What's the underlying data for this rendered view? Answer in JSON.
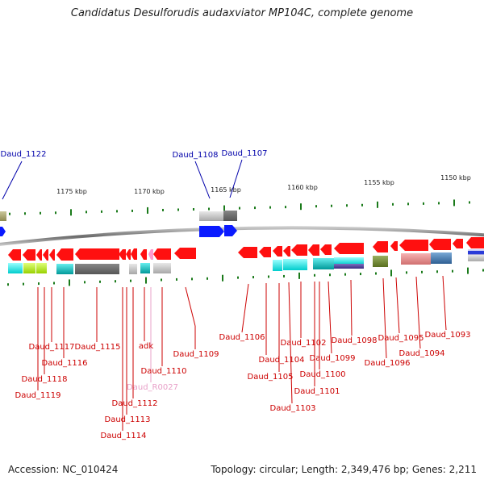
{
  "title": "Candidatus Desulforudis audaxviator MP104C, complete genome",
  "footer": {
    "accession": "Accession: NC_010424",
    "summary": "Topology: circular; Length: 2,349,476 bp; Genes: 2,211"
  },
  "colors": {
    "forward_label": "#0000aa",
    "reverse_label": "#cc0000",
    "rna_label": "#e8a0c8",
    "backbone": "#777777",
    "tick": "#1a7a1a",
    "forward_gene": "#0a1aff",
    "reverse_gene": "#ff1010"
  },
  "scale_labels": [
    "1175 kbp",
    "1170 kbp",
    "1165 kbp",
    "1160 kbp",
    "1155 kbp",
    "1150 kbp"
  ],
  "forward_labels": [
    "Daud_1122",
    "Daud_1108",
    "Daud_1107"
  ],
  "reverse_labels": [
    "Daud_1117",
    "Daud_1116",
    "Daud_1118",
    "Daud_1119",
    "Daud_1115",
    "adk",
    "Daud_R0027",
    "Daud_1110",
    "Daud_1112",
    "Daud_1113",
    "Daud_1114",
    "Daud_1109",
    "Daud_1106",
    "Daud_1104",
    "Daud_1105",
    "Daud_1103",
    "Daud_1102",
    "Daud_1101",
    "Daud_1100",
    "Daud_1099",
    "Daud_1098",
    "Daud_1096",
    "Daud_1095",
    "Daud_1094",
    "Daud_1093"
  ]
}
